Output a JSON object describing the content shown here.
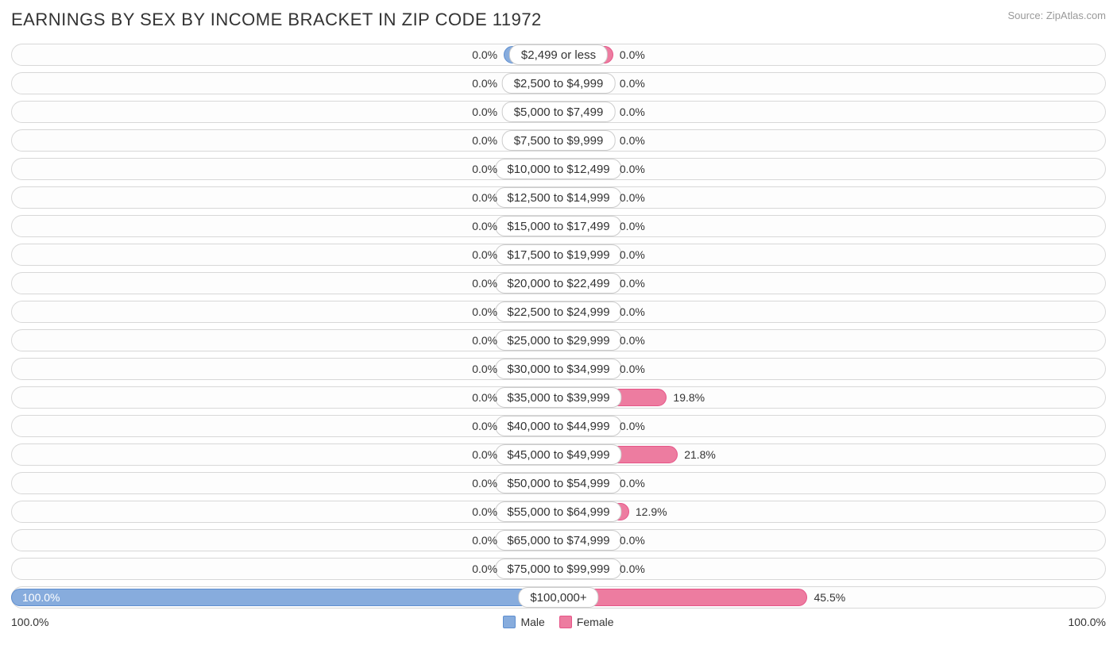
{
  "title": "EARNINGS BY SEX BY INCOME BRACKET IN ZIP CODE 11972",
  "source": "Source: ZipAtlas.com",
  "colors": {
    "male_fill": "#87acdd",
    "male_border": "#5f8fd0",
    "female_fill": "#ed7ca0",
    "female_border": "#e65588",
    "track_border": "#d8d8d8",
    "label_border": "#cccccc",
    "text": "#333333"
  },
  "axis": {
    "max_pct": 100.0,
    "min_bar_pct": 10.0,
    "left_scale_label": "100.0%",
    "right_scale_label": "100.0%"
  },
  "legend": {
    "male": "Male",
    "female": "Female"
  },
  "rows": [
    {
      "label": "$2,499 or less",
      "male": 0.0,
      "female": 0.0
    },
    {
      "label": "$2,500 to $4,999",
      "male": 0.0,
      "female": 0.0
    },
    {
      "label": "$5,000 to $7,499",
      "male": 0.0,
      "female": 0.0
    },
    {
      "label": "$7,500 to $9,999",
      "male": 0.0,
      "female": 0.0
    },
    {
      "label": "$10,000 to $12,499",
      "male": 0.0,
      "female": 0.0
    },
    {
      "label": "$12,500 to $14,999",
      "male": 0.0,
      "female": 0.0
    },
    {
      "label": "$15,000 to $17,499",
      "male": 0.0,
      "female": 0.0
    },
    {
      "label": "$17,500 to $19,999",
      "male": 0.0,
      "female": 0.0
    },
    {
      "label": "$20,000 to $22,499",
      "male": 0.0,
      "female": 0.0
    },
    {
      "label": "$22,500 to $24,999",
      "male": 0.0,
      "female": 0.0
    },
    {
      "label": "$25,000 to $29,999",
      "male": 0.0,
      "female": 0.0
    },
    {
      "label": "$30,000 to $34,999",
      "male": 0.0,
      "female": 0.0
    },
    {
      "label": "$35,000 to $39,999",
      "male": 0.0,
      "female": 19.8
    },
    {
      "label": "$40,000 to $44,999",
      "male": 0.0,
      "female": 0.0
    },
    {
      "label": "$45,000 to $49,999",
      "male": 0.0,
      "female": 21.8
    },
    {
      "label": "$50,000 to $54,999",
      "male": 0.0,
      "female": 0.0
    },
    {
      "label": "$55,000 to $64,999",
      "male": 0.0,
      "female": 12.9
    },
    {
      "label": "$65,000 to $74,999",
      "male": 0.0,
      "female": 0.0
    },
    {
      "label": "$75,000 to $99,999",
      "male": 0.0,
      "female": 0.0
    },
    {
      "label": "$100,000+",
      "male": 100.0,
      "female": 45.5
    }
  ]
}
